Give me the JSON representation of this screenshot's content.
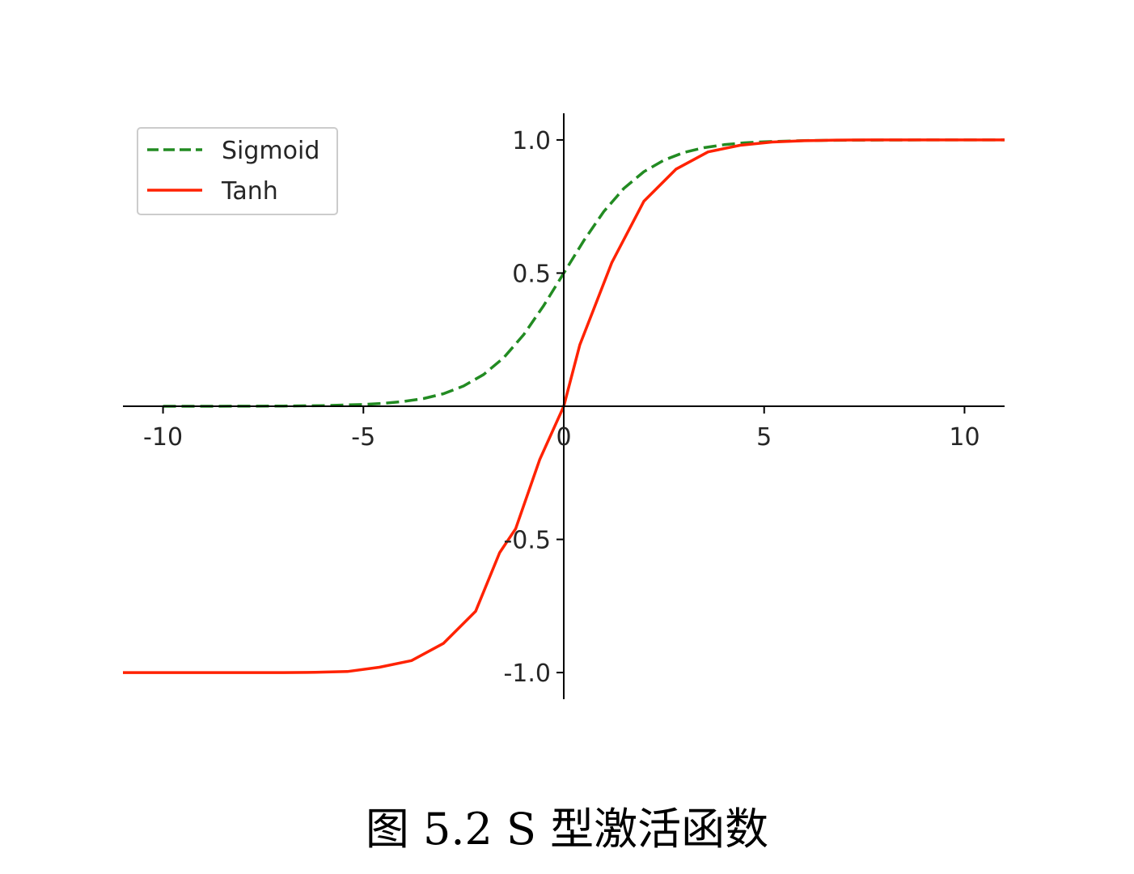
{
  "caption": "图 5.2 S 型激活函数",
  "chart_data": {
    "type": "line",
    "title": "",
    "xlabel": "",
    "ylabel": "",
    "xlim": [
      -11,
      11
    ],
    "ylim": [
      -1.1,
      1.1
    ],
    "x_ticks": [
      -10,
      -5,
      0,
      5,
      10
    ],
    "x_tick_labels": [
      "-10",
      "-5",
      "0",
      "5",
      "10"
    ],
    "y_ticks": [
      -1.0,
      -0.5,
      0.5,
      1.0
    ],
    "y_tick_labels": [
      "-1.0",
      "-0.5",
      "0.5",
      "1.0"
    ],
    "spines": "centered-at-origin",
    "grid": false,
    "legend_position": "upper-left",
    "series": [
      {
        "name": "Sigmoid",
        "color": "#228B22",
        "style": "dashed",
        "x": [
          -10,
          -9,
          -8,
          -7,
          -6,
          -5,
          -4.5,
          -4,
          -3.5,
          -3,
          -2.5,
          -2,
          -1.5,
          -1,
          -0.5,
          0,
          0.5,
          1,
          1.5,
          2,
          2.5,
          3,
          3.5,
          4,
          4.5,
          5,
          6,
          7,
          8,
          9,
          10,
          11
        ],
        "y": [
          5e-05,
          0.0001,
          0.0003,
          0.0009,
          0.0025,
          0.0067,
          0.011,
          0.018,
          0.029,
          0.047,
          0.076,
          0.119,
          0.182,
          0.269,
          0.378,
          0.5,
          0.622,
          0.731,
          0.818,
          0.881,
          0.924,
          0.953,
          0.971,
          0.982,
          0.989,
          0.993,
          0.9975,
          0.9991,
          0.9997,
          0.9999,
          0.99995,
          0.99998
        ]
      },
      {
        "name": "Tanh",
        "color": "#ff2200",
        "style": "solid",
        "x": [
          -11,
          -10,
          -9.4,
          -8.6,
          -7.8,
          -7,
          -6.2,
          -5.4,
          -4.6,
          -3.8,
          -3,
          -2.2,
          -1.6,
          -1.2,
          -0.6,
          0,
          0.4,
          1.2,
          2,
          2.8,
          3.6,
          4.4,
          5.2,
          6,
          6.8,
          7.6,
          11
        ],
        "y": [
          -1,
          -1,
          -1,
          -1,
          -1,
          -0.9999,
          -0.9992,
          -0.996,
          -0.98,
          -0.955,
          -0.89,
          -0.77,
          -0.55,
          -0.46,
          -0.2,
          0,
          0.23,
          0.54,
          0.77,
          0.89,
          0.955,
          0.98,
          0.992,
          0.997,
          0.9993,
          0.9999,
          1
        ]
      }
    ]
  }
}
